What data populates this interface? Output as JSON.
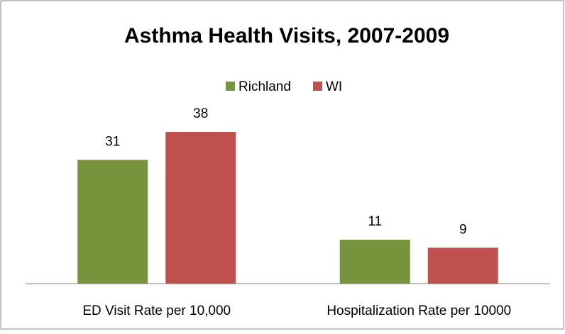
{
  "chart_data": {
    "type": "bar",
    "title": "Asthma Health Visits, 2007-2009",
    "categories": [
      "ED Visit Rate per 10,000",
      "Hospitalization Rate per 10000"
    ],
    "series": [
      {
        "name": "Richland",
        "color": "#77933c",
        "values": [
          31,
          11
        ]
      },
      {
        "name": "WI",
        "color": "#c0504d",
        "values": [
          38,
          9
        ]
      }
    ],
    "legend": "top"
  }
}
